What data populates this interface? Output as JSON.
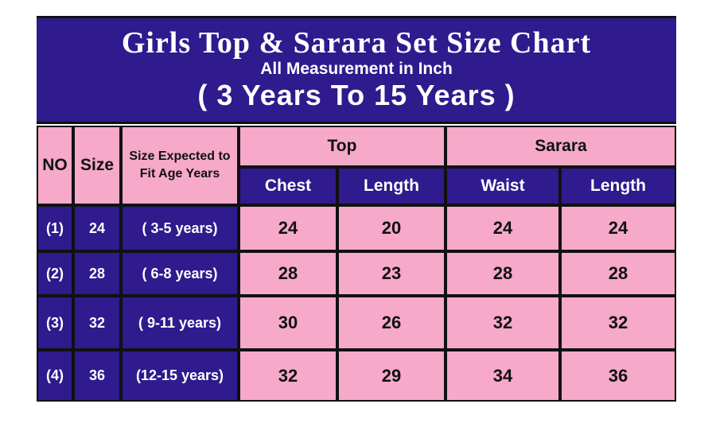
{
  "title": "Girls Top & Sarara Set Size Chart",
  "subtitle": "All Measurement in Inch",
  "age_range": "( 3 Years To 15 Years )",
  "colors": {
    "navy": "#2f1a8e",
    "pink": "#f6a9c8"
  },
  "headers": {
    "no": "NO",
    "size": "Size",
    "age": "Size Expected to Fit Age Years",
    "top": "Top",
    "sarara": "Sarara",
    "chest": "Chest",
    "top_length": "Length",
    "waist": "Waist",
    "sarara_length": "Length"
  },
  "rows": [
    {
      "no": "(1)",
      "size": "24",
      "age": "( 3-5 years)",
      "chest": "24",
      "top_length": "20",
      "waist": "24",
      "sarara_length": "24"
    },
    {
      "no": "(2)",
      "size": "28",
      "age": "( 6-8 years)",
      "chest": "28",
      "top_length": "23",
      "waist": "28",
      "sarara_length": "28"
    },
    {
      "no": "(3)",
      "size": "32",
      "age": "( 9-11 years)",
      "chest": "30",
      "top_length": "26",
      "waist": "32",
      "sarara_length": "32"
    },
    {
      "no": "(4)",
      "size": "36",
      "age": "(12-15 years)",
      "chest": "32",
      "top_length": "29",
      "waist": "34",
      "sarara_length": "36"
    }
  ]
}
